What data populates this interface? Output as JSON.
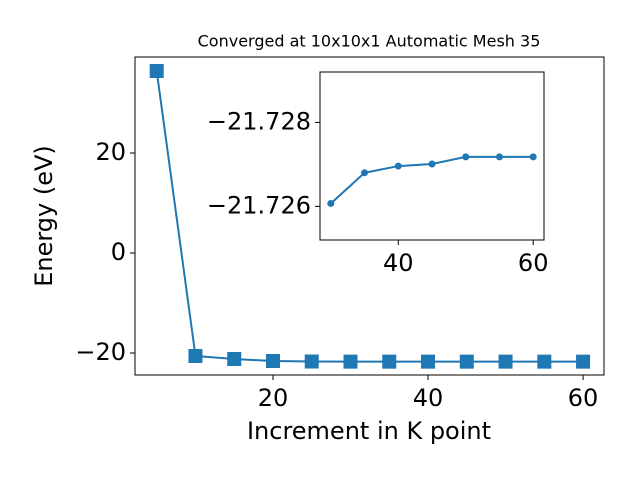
{
  "chart_data": [
    {
      "type": "line",
      "title": "Converged at 10x10x1 Automatic Mesh 35",
      "xlabel": "Increment in K point",
      "ylabel": "Energy (eV)",
      "x": [
        5,
        10,
        15,
        20,
        25,
        30,
        35,
        40,
        45,
        50,
        55,
        60
      ],
      "values": [
        36.4,
        -20.6,
        -21.2,
        -21.6,
        -21.7,
        -21.72607,
        -21.7268,
        -21.72696,
        -21.72701,
        -21.72718,
        -21.72718,
        -21.72718
      ],
      "color": "#1f77b4",
      "marker": "square",
      "xlim": [
        2.2,
        62.7
      ],
      "ylim": [
        -24.4,
        39.2
      ],
      "xticks": [
        20,
        40,
        60
      ],
      "yticks": [
        {
          "value": -20,
          "label": "−20"
        },
        0,
        20
      ]
    },
    {
      "type": "line",
      "x": [
        30,
        35,
        40,
        45,
        50,
        55,
        60
      ],
      "values": [
        -21.72607,
        -21.7268,
        -21.72696,
        -21.72701,
        -21.72718,
        -21.72718,
        -21.72718
      ],
      "color": "#1f77b4",
      "marker": "circle",
      "xlim": [
        28.4,
        61.6
      ],
      "ylim": [
        -21.7252,
        -21.7292
      ],
      "xticks": [
        40,
        60
      ],
      "yticks": [
        {
          "value": -21.726,
          "label": "−21.726"
        },
        {
          "value": -21.728,
          "label": "−21.728"
        }
      ]
    }
  ]
}
